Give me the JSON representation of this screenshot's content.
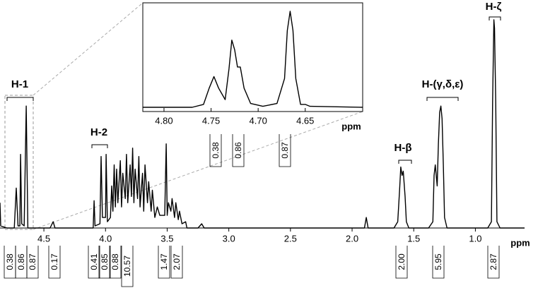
{
  "chart_data": {
    "type": "line",
    "x_label": "ppm",
    "xlim": [
      4.856,
      0.601
    ],
    "ylim": [
      0,
      100
    ],
    "xticks": [
      {
        "value": 4.5,
        "label": "4.5"
      },
      {
        "value": 4.0,
        "label": "4.0"
      },
      {
        "value": 3.5,
        "label": "3.5"
      },
      {
        "value": 3.0,
        "label": "3.0"
      },
      {
        "value": 2.5,
        "label": "2.5"
      },
      {
        "value": 2.0,
        "label": "2.0"
      },
      {
        "value": 1.5,
        "label": "1.5"
      },
      {
        "value": 1.0,
        "label": "1.0"
      }
    ],
    "x": [
      4.856,
      4.85,
      4.8,
      4.74,
      4.724,
      4.71,
      4.695,
      4.689,
      4.68,
      4.66,
      4.643,
      4.63,
      4.45,
      4.425,
      4.41,
      4.1,
      4.093,
      4.085,
      4.045,
      4.036,
      4.025,
      4.0,
      3.995,
      3.985,
      3.96,
      3.95,
      3.94,
      3.93,
      3.92,
      3.91,
      3.9,
      3.88,
      3.87,
      3.86,
      3.84,
      3.83,
      3.82,
      3.8,
      3.79,
      3.78,
      3.77,
      3.76,
      3.74,
      3.73,
      3.72,
      3.7,
      3.69,
      3.68,
      3.66,
      3.65,
      3.63,
      3.62,
      3.6,
      3.58,
      3.56,
      3.52,
      3.508,
      3.5,
      3.49,
      3.47,
      3.46,
      3.44,
      3.43,
      3.41,
      3.4,
      3.38,
      3.35,
      3.34,
      3.25,
      3.22,
      3.2,
      1.9,
      1.885,
      1.87,
      1.66,
      1.63,
      1.615,
      1.605,
      1.595,
      1.585,
      1.57,
      1.56,
      1.54,
      1.38,
      1.345,
      1.335,
      1.325,
      1.31,
      1.3,
      1.29,
      1.28,
      1.27,
      1.26,
      1.25,
      1.23,
      0.9,
      0.87,
      0.86,
      0.85,
      0.845,
      0.835,
      0.825,
      0.8,
      0.601
    ],
    "values": [
      12,
      1,
      0,
      0,
      19,
      1,
      1,
      35,
      2,
      1,
      58,
      0,
      0,
      3,
      0,
      0,
      13,
      1,
      2,
      34,
      5,
      5,
      35,
      3,
      5,
      20,
      8,
      30,
      10,
      28,
      12,
      32,
      10,
      26,
      14,
      35,
      12,
      30,
      15,
      38,
      12,
      28,
      14,
      34,
      10,
      26,
      8,
      30,
      12,
      22,
      8,
      18,
      5,
      10,
      6,
      6,
      40,
      6,
      12,
      8,
      14,
      5,
      12,
      4,
      8,
      2,
      3,
      0,
      0,
      2,
      0,
      0,
      5,
      0,
      0,
      3,
      18,
      29,
      25,
      27,
      15,
      3,
      0,
      0,
      3,
      25,
      30,
      20,
      40,
      55,
      58,
      52,
      30,
      5,
      0,
      0,
      3,
      60,
      99,
      95,
      60,
      3,
      0,
      0
    ],
    "peak_labels": [
      "H-1",
      "H-2",
      "H-β",
      "H-(γ,δ,ε)",
      "H-ζ"
    ],
    "integrals": [
      "0.38",
      "0.86",
      "0.87",
      "0.17",
      "0.41",
      "0.85",
      "0.88",
      "10.57",
      "1.47",
      "2.07",
      "2.00",
      "5.95",
      "2.87"
    ],
    "inset": {
      "x_label": "ppm",
      "xlim": [
        4.8225,
        4.589
      ],
      "ylim": [
        0,
        100
      ],
      "xticks": [
        {
          "value": 4.8,
          "label": "4.80"
        },
        {
          "value": 4.75,
          "label": "4.75"
        },
        {
          "value": 4.7,
          "label": "4.70"
        },
        {
          "value": 4.65,
          "label": "4.65"
        }
      ],
      "x": [
        4.8225,
        4.77,
        4.758,
        4.752,
        4.747,
        4.742,
        4.735,
        4.731,
        4.728,
        4.725,
        4.722,
        4.719,
        4.715,
        4.708,
        4.695,
        4.68,
        4.672,
        4.669,
        4.666,
        4.663,
        4.66,
        4.655,
        4.65,
        4.645,
        4.589
      ],
      "values": [
        0,
        0,
        3,
        20,
        32,
        20,
        8,
        40,
        70,
        60,
        42,
        42,
        20,
        4,
        1,
        4,
        30,
        80,
        100,
        80,
        30,
        3,
        3,
        1,
        0
      ],
      "integrals": [
        "0.38",
        "0.86",
        "0.87"
      ]
    }
  }
}
